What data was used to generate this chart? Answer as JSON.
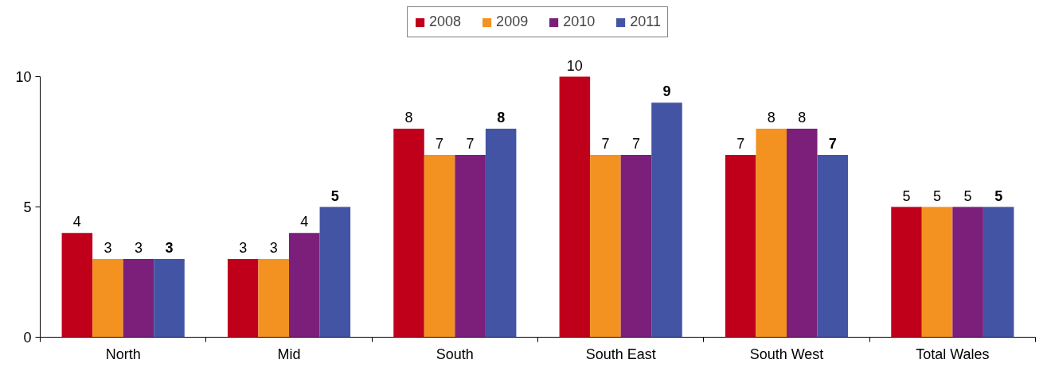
{
  "chart_data": {
    "type": "bar",
    "categories": [
      "North",
      "Mid",
      "South",
      "South East",
      "South West",
      "Total Wales"
    ],
    "series": [
      {
        "name": "2008",
        "color": "#c0001a",
        "values": [
          4,
          3,
          8,
          10,
          7,
          5
        ]
      },
      {
        "name": "2009",
        "color": "#f39220",
        "values": [
          3,
          3,
          7,
          7,
          8,
          5
        ]
      },
      {
        "name": "2010",
        "color": "#7b1f7b",
        "values": [
          3,
          4,
          7,
          7,
          8,
          5
        ]
      },
      {
        "name": "2011",
        "color": "#4454a4",
        "values": [
          3,
          5,
          8,
          9,
          7,
          5
        ]
      }
    ],
    "ylim": [
      0,
      10
    ],
    "yticks": [
      0,
      5,
      10
    ],
    "grid": false,
    "legend": "top",
    "data_labels": true
  }
}
